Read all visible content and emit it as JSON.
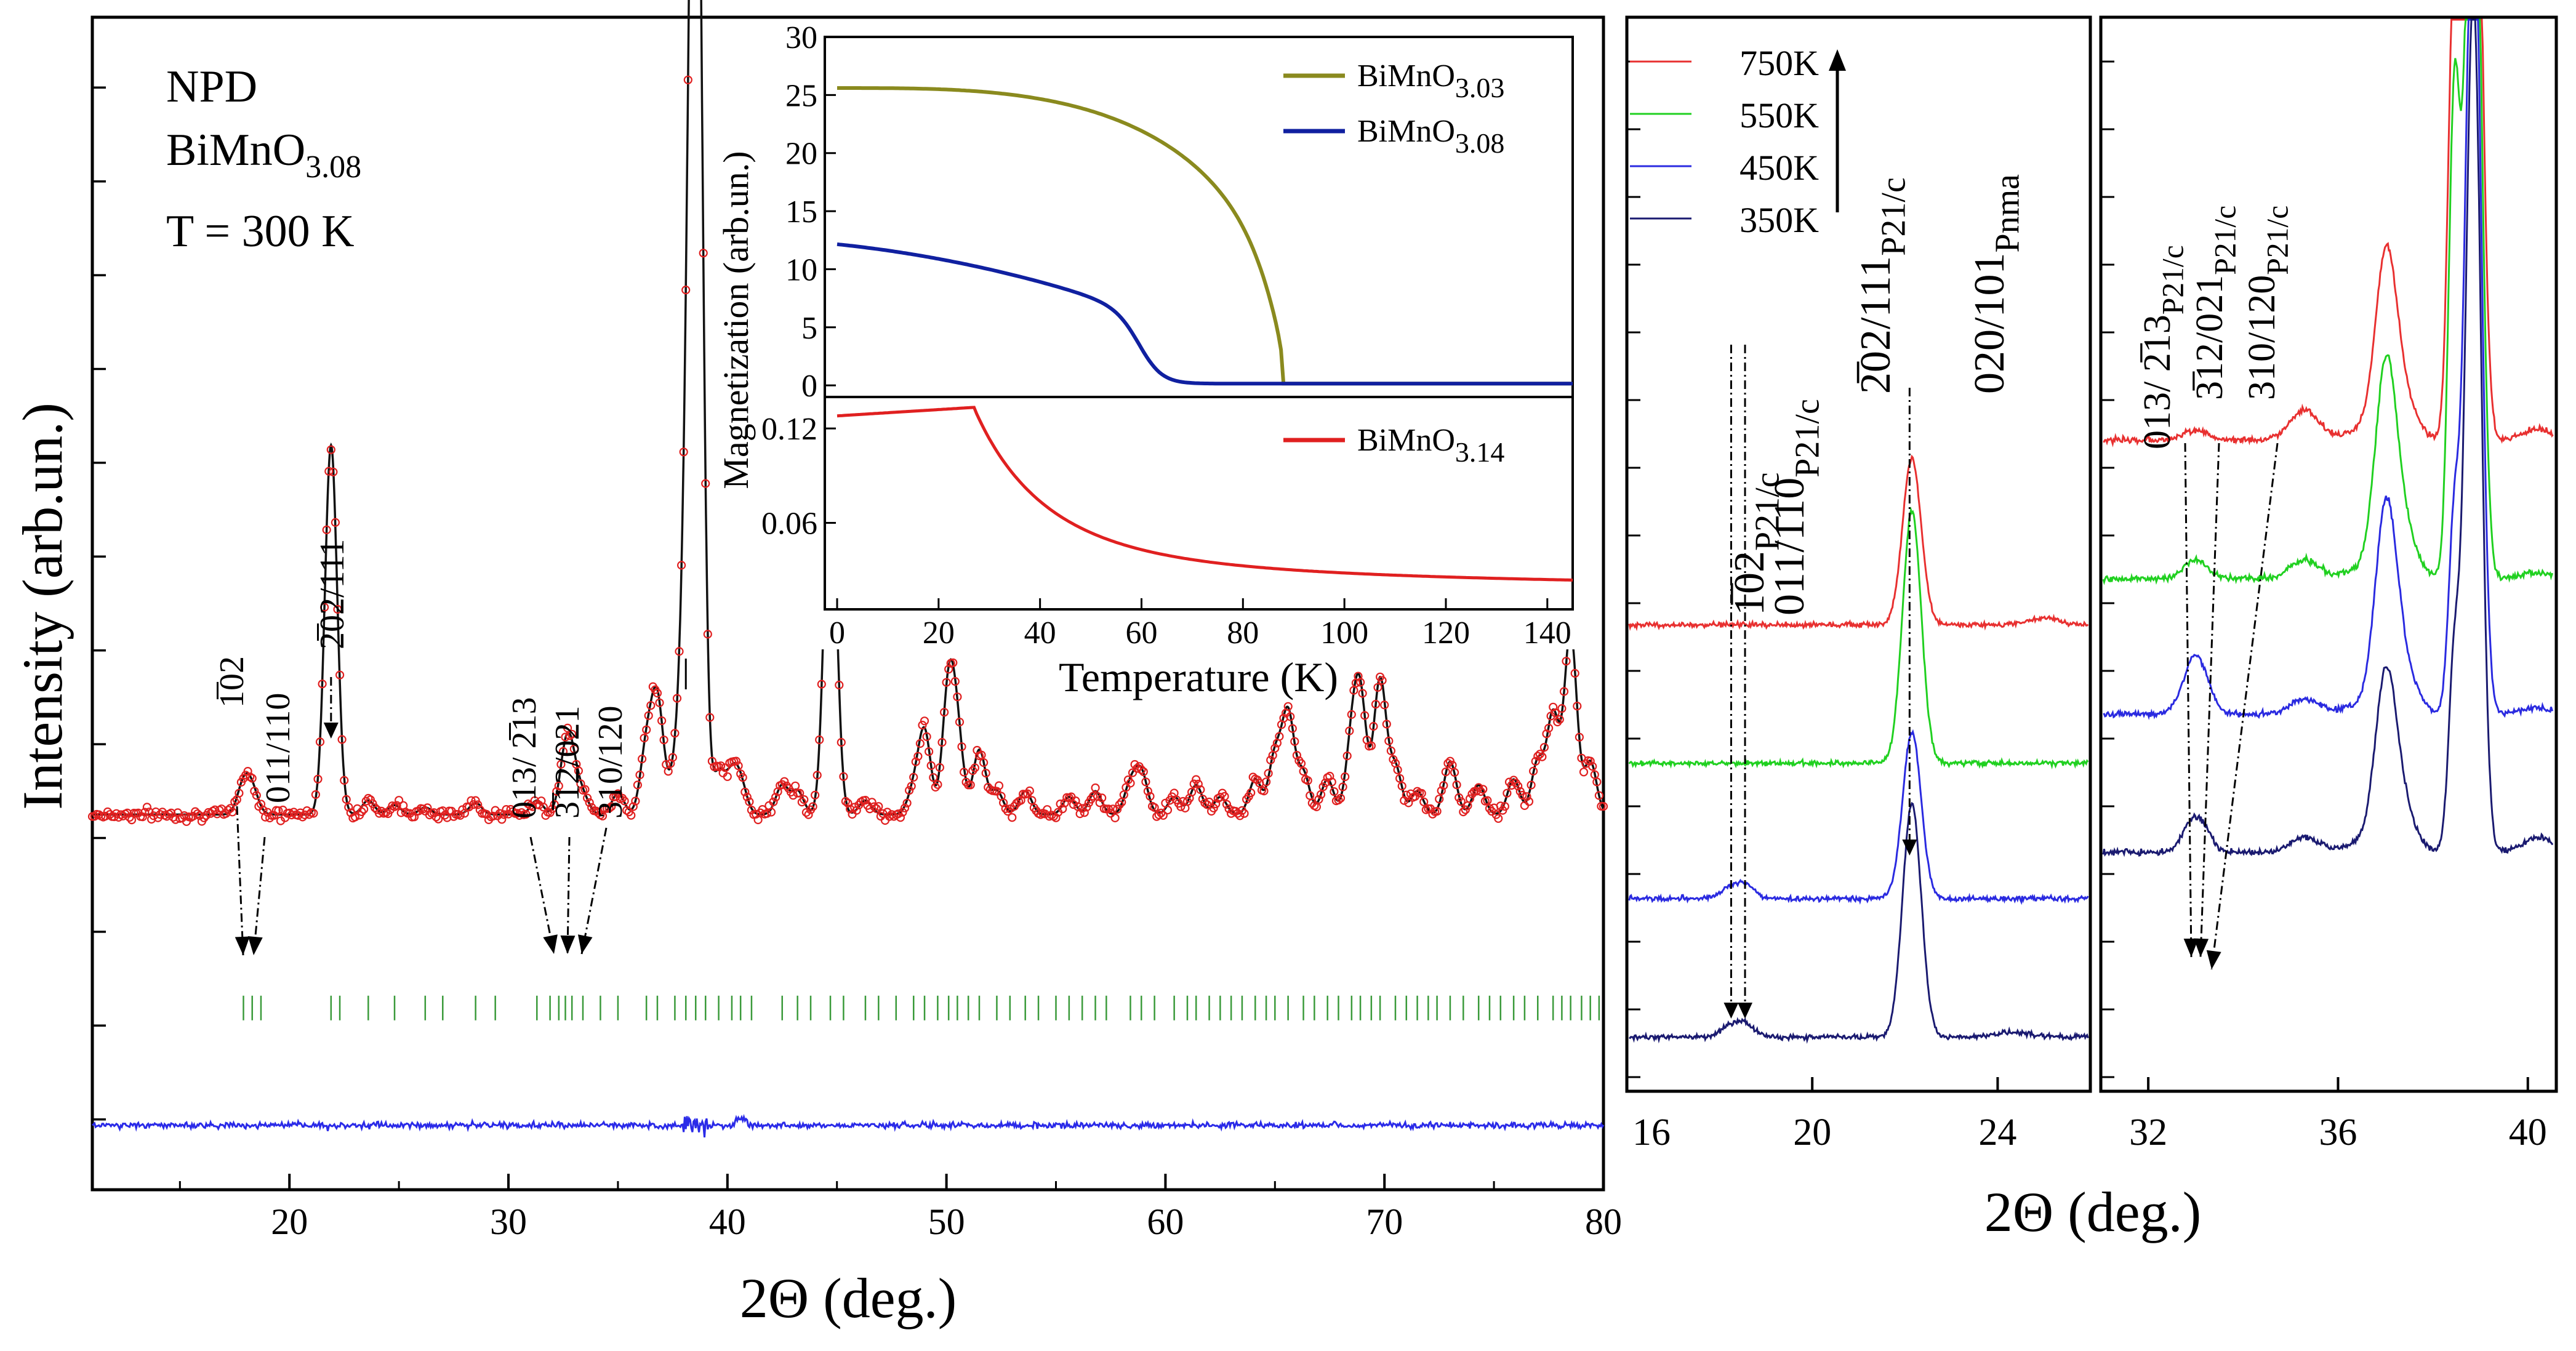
{
  "chart_data": [
    {
      "id": "main",
      "type": "line",
      "annotations": {
        "line1": "NPD",
        "line2_main": "BiMnO",
        "line2_sub": "3.08",
        "line3": "T = 300 K"
      },
      "xlabel": "2Θ (deg.)",
      "ylabel": "Intensity (arb.un.)",
      "xlim": [
        11,
        80
      ],
      "ylim": [
        0,
        10
      ],
      "x_ticks": [
        20,
        30,
        40,
        50,
        60,
        70,
        80
      ],
      "baseline": 3.2,
      "peaks": [
        [
          17.9,
          0.25
        ],
        [
          18.3,
          0.2
        ],
        [
          21.9,
          3.15
        ],
        [
          23.6,
          0.12
        ],
        [
          24.8,
          0.08
        ],
        [
          26.2,
          0.06
        ],
        [
          28.5,
          0.1
        ],
        [
          31.3,
          0.12
        ],
        [
          32.6,
          0.45
        ],
        [
          32.9,
          0.35
        ],
        [
          33.4,
          0.15
        ],
        [
          35.0,
          0.18
        ],
        [
          36.3,
          0.55
        ],
        [
          36.8,
          0.95
        ],
        [
          37.6,
          0.3
        ],
        [
          38.1,
          1.6
        ],
        [
          38.55,
          10.3
        ],
        [
          39.6,
          0.35
        ],
        [
          40.2,
          0.3
        ],
        [
          40.6,
          0.25
        ],
        [
          42.5,
          0.25
        ],
        [
          43.2,
          0.2
        ],
        [
          44.7,
          3.05
        ],
        [
          46.3,
          0.12
        ],
        [
          48.5,
          0.2
        ],
        [
          49.0,
          0.7
        ],
        [
          50.1,
          1.05
        ],
        [
          50.5,
          0.6
        ],
        [
          51.5,
          0.55
        ],
        [
          52.3,
          0.2
        ],
        [
          53.6,
          0.2
        ],
        [
          55.6,
          0.15
        ],
        [
          56.8,
          0.2
        ],
        [
          58.4,
          0.25
        ],
        [
          58.9,
          0.35
        ],
        [
          60.4,
          0.15
        ],
        [
          61.4,
          0.25
        ],
        [
          62.5,
          0.15
        ],
        [
          64.1,
          0.3
        ],
        [
          65.0,
          0.5
        ],
        [
          65.6,
          0.85
        ],
        [
          66.3,
          0.35
        ],
        [
          67.4,
          0.3
        ],
        [
          68.5,
          0.55
        ],
        [
          68.9,
          0.95
        ],
        [
          69.8,
          1.15
        ],
        [
          70.5,
          0.4
        ],
        [
          71.5,
          0.2
        ],
        [
          73.0,
          0.45
        ],
        [
          74.3,
          0.25
        ],
        [
          75.9,
          0.3
        ],
        [
          77.0,
          0.45
        ],
        [
          77.7,
          0.85
        ],
        [
          78.5,
          1.55
        ],
        [
          79.4,
          0.45
        ]
      ],
      "difference_level": 0.55,
      "bragg_positions": [
        17.9,
        18.3,
        18.7,
        21.9,
        22.3,
        23.6,
        24.8,
        26.2,
        27.0,
        28.5,
        29.4,
        31.3,
        31.9,
        32.3,
        32.6,
        32.9,
        33.4,
        34.2,
        35.0,
        36.3,
        36.8,
        37.6,
        38.1,
        38.55,
        39.0,
        39.6,
        40.2,
        40.6,
        41.1,
        42.5,
        43.2,
        43.8,
        44.7,
        45.3,
        46.3,
        46.9,
        47.7,
        48.5,
        49.0,
        49.6,
        50.1,
        50.5,
        51.0,
        51.5,
        52.3,
        52.9,
        53.6,
        54.2,
        55.0,
        55.6,
        56.2,
        56.8,
        57.3,
        58.4,
        58.9,
        59.5,
        60.4,
        61.0,
        61.4,
        62.0,
        62.5,
        63.0,
        63.5,
        64.1,
        64.6,
        65.0,
        65.6,
        66.3,
        66.8,
        67.4,
        67.9,
        68.5,
        68.9,
        69.4,
        69.8,
        70.5,
        71.0,
        71.5,
        72.0,
        72.4,
        73.0,
        73.6,
        74.3,
        74.8,
        75.3,
        75.9,
        76.4,
        77.0,
        77.7,
        78.1,
        78.5,
        79.0,
        79.4,
        79.8
      ],
      "peak_labels": [
        {
          "text": "1̅02",
          "x": 17.9
        },
        {
          "text": "011/110",
          "x": 18.3
        },
        {
          "text": "2̅02/111",
          "x": 21.9
        },
        {
          "text": "013/ 2̅13",
          "x": 32.6
        },
        {
          "text": "3̅12/021",
          "x": 32.9
        },
        {
          "text": "310/120",
          "x": 33.4
        }
      ]
    },
    {
      "id": "inset-top",
      "type": "line",
      "ylabel": "Magnetization (arb.un.)",
      "xlim": [
        0,
        145
      ],
      "ylim": [
        -1,
        30
      ],
      "y_ticks": [
        0,
        5,
        10,
        15,
        20,
        25,
        30
      ],
      "legend": "top-right",
      "series": [
        {
          "name_main": "BiMnO",
          "name_sub": "3.03",
          "color": "#8a8a1e",
          "M0": 25.6,
          "Tc": 85,
          "width": 5,
          "tail": 0.1
        },
        {
          "name_main": "BiMnO",
          "name_sub": "3.08",
          "color": "#1020a0",
          "M0": 12.0,
          "Tc": 60,
          "width": 2.5,
          "tail": 0.1
        }
      ]
    },
    {
      "id": "inset-bottom",
      "type": "line",
      "xlabel": "Temperature (K)",
      "xlim": [
        0,
        145
      ],
      "ylim": [
        0.005,
        0.14
      ],
      "x_ticks": [
        0,
        20,
        40,
        60,
        80,
        100,
        120,
        140
      ],
      "y_ticks": [
        0.06,
        0.12
      ],
      "legend": "top-right",
      "series": [
        {
          "name_main": "BiMnO",
          "name_sub": "3.14",
          "color": "#e02020",
          "flat": 0.128,
          "Tk": 27,
          "tail": 0.015
        }
      ]
    },
    {
      "id": "right-a",
      "type": "line",
      "xlim": [
        16,
        26
      ],
      "x_ticks": [
        16,
        20,
        24
      ],
      "legend": "top-left",
      "series": [
        {
          "name": "750K",
          "color": "#e83030"
        },
        {
          "name": "550K",
          "color": "#20d020"
        },
        {
          "name": "450K",
          "color": "#2a2ae0"
        },
        {
          "name": "350K",
          "color": "#1a1a70"
        }
      ],
      "peak_labels": [
        {
          "main": "1̅02",
          "sub": "P21/c",
          "x": 18.25
        },
        {
          "main": "011/110",
          "sub": "P21/c",
          "x": 18.55
        },
        {
          "main": "2̅02/111",
          "sub": "P21/c",
          "x": 22.1
        },
        {
          "main": "020/101",
          "sub": "Pnma",
          "x": 22.1
        }
      ]
    },
    {
      "id": "right-b",
      "type": "line",
      "xlim": [
        31,
        40.6
      ],
      "x_ticks": [
        32,
        36,
        40
      ],
      "xlabel": "2Θ (deg.)",
      "peak_labels": [
        {
          "main": "013/ 2̅13",
          "sub": "P21/c",
          "x": 32.9
        },
        {
          "main": "3̅12/021",
          "sub": "P21/c",
          "x": 33.2
        },
        {
          "main": "310/120",
          "sub": "P21/c",
          "x": 33.5
        }
      ]
    }
  ]
}
